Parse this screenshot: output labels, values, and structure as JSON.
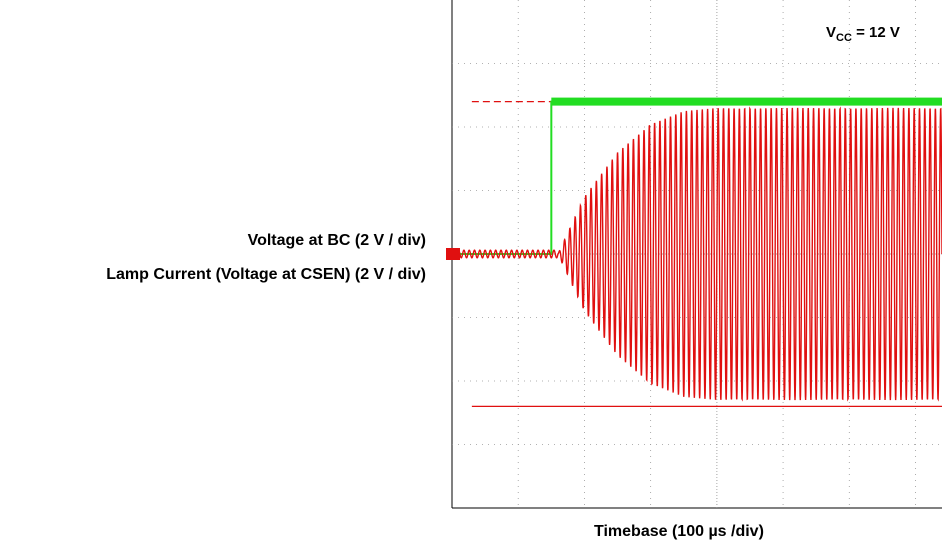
{
  "labels": {
    "channel_bc": "Voltage at BC (2 V / div)",
    "channel_lamp": "Lamp Current (Voltage at CSEN) (2 V / div)",
    "timebase": "Timebase (100 µs /div)",
    "vcc_prefix": "V",
    "vcc_sub": "CC",
    "vcc_suffix": " = 12 V"
  },
  "colors": {
    "bc_trace": "#22dd22",
    "lamp_trace": "#e01010",
    "grid": "#999999",
    "frame": "#000000"
  },
  "chart_data": {
    "type": "line",
    "title": "",
    "xlabel": "Timebase (100 µs /div)",
    "ylabel": "",
    "x_divisions": 8,
    "y_divisions": 8,
    "grid": true,
    "annotation": "VCC = 12 V",
    "series": [
      {
        "name": "Voltage at BC (2 V / div)",
        "color": "#22dd22",
        "x_div": [
          0,
          1.5,
          1.5,
          8
        ],
        "y_div": [
          0,
          0,
          2.4,
          2.4
        ]
      },
      {
        "name": "Lamp Current (Voltage at CSEN) (2 V / div)",
        "color": "#e01010",
        "envelope_x_div": [
          0,
          1.6,
          2.0,
          2.5,
          3.0,
          3.5,
          4.0,
          8
        ],
        "envelope_amplitude_div": [
          0,
          0,
          0.9,
          1.6,
          2.05,
          2.25,
          2.3,
          2.3
        ]
      }
    ],
    "reference_lines": [
      {
        "type": "dashed",
        "y_div": 2.4
      },
      {
        "type": "solid",
        "y_div": -2.4
      }
    ]
  }
}
